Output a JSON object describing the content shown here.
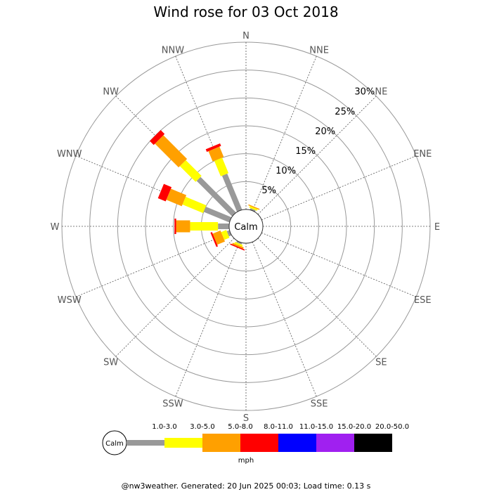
{
  "title": "Wind rose for 03 Oct 2018",
  "footer": "@nw3weather. Generated: 20 Jun 2025 00:03; Load time: 0.13 s",
  "chart_data": {
    "type": "wind-rose",
    "title": "Wind rose for 03 Oct 2018",
    "directions": [
      "N",
      "NNE",
      "NE",
      "ENE",
      "E",
      "ESE",
      "SE",
      "SSE",
      "S",
      "SSW",
      "SW",
      "WSW",
      "W",
      "WNW",
      "NW",
      "NNW"
    ],
    "radial_ticks": [
      "5%",
      "10%",
      "15%",
      "20%",
      "25%",
      "30%"
    ],
    "radial_tick_values": [
      5,
      10,
      15,
      20,
      25,
      30
    ],
    "radial_max": 30,
    "calm_label": "Calm",
    "units": "mph",
    "speed_bins": [
      {
        "label": "1.0-3.0",
        "color": "#999999"
      },
      {
        "label": "3.0-5.0",
        "color": "#ffff00"
      },
      {
        "label": "5.0-8.0",
        "color": "#ffa000"
      },
      {
        "label": "8.0-11.0",
        "color": "#ff0000"
      },
      {
        "label": "11.0-15.0",
        "color": "#0000ff"
      },
      {
        "label": "15.0-20.0",
        "color": "#a020f0"
      },
      {
        "label": "20.0-50.0",
        "color": "#000000"
      }
    ],
    "series": [
      {
        "direction": "NNE",
        "values": [
          0.3,
          0.3,
          0.2,
          0,
          0,
          0,
          0
        ]
      },
      {
        "direction": "NNW",
        "values": [
          7,
          3,
          2,
          0.5,
          0,
          0,
          0
        ]
      },
      {
        "direction": "NW",
        "values": [
          9,
          4,
          6,
          1,
          0,
          0,
          0
        ]
      },
      {
        "direction": "WNW",
        "values": [
          5,
          4,
          3,
          1.5,
          0,
          0,
          0
        ]
      },
      {
        "direction": "W",
        "values": [
          2,
          5,
          2.5,
          0.3,
          0,
          0,
          0
        ]
      },
      {
        "direction": "WSW",
        "values": [
          0.5,
          1,
          1.5,
          0.3,
          0,
          0,
          0
        ]
      },
      {
        "direction": "SSW",
        "values": [
          0.3,
          0.3,
          0.3,
          0.2,
          0,
          0,
          0
        ]
      }
    ]
  }
}
